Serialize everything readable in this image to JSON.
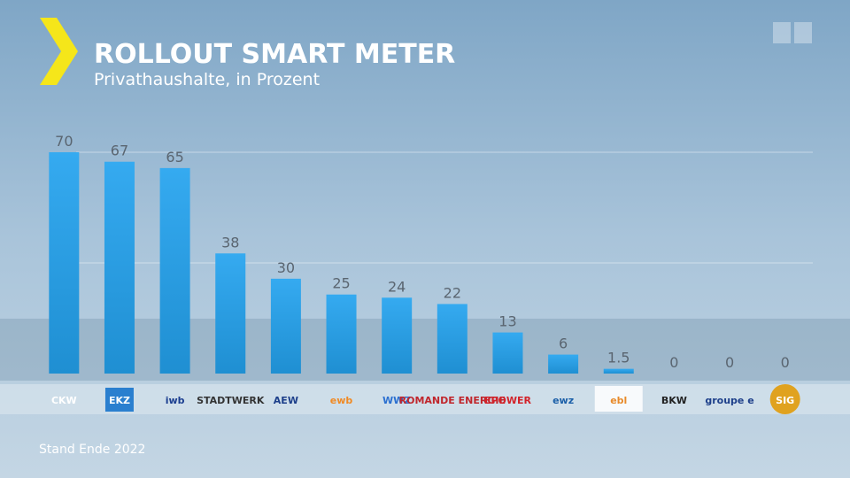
{
  "title": "ROLLOUT SMART METER",
  "subtitle": "Privathaushalte, in Prozent",
  "footnote": "Stand Ende 2022",
  "chart_data": {
    "type": "bar",
    "categories": [
      "CKW",
      "EKZ",
      "iwb",
      "STADTWERK",
      "AEW",
      "ewb",
      "WWZ",
      "ROMANDE ENERGIE",
      "EPOWER",
      "ewz",
      "ebl",
      "BKW",
      "groupe e",
      "SIG"
    ],
    "values": [
      70,
      67,
      65,
      38,
      30,
      25,
      24,
      22,
      13,
      6,
      1.5,
      0,
      0,
      0
    ],
    "color": "#2a9ee0",
    "ylim": [
      0,
      70
    ],
    "yticks": [
      35,
      70
    ],
    "show_tick_labels": false,
    "grid": true
  }
}
